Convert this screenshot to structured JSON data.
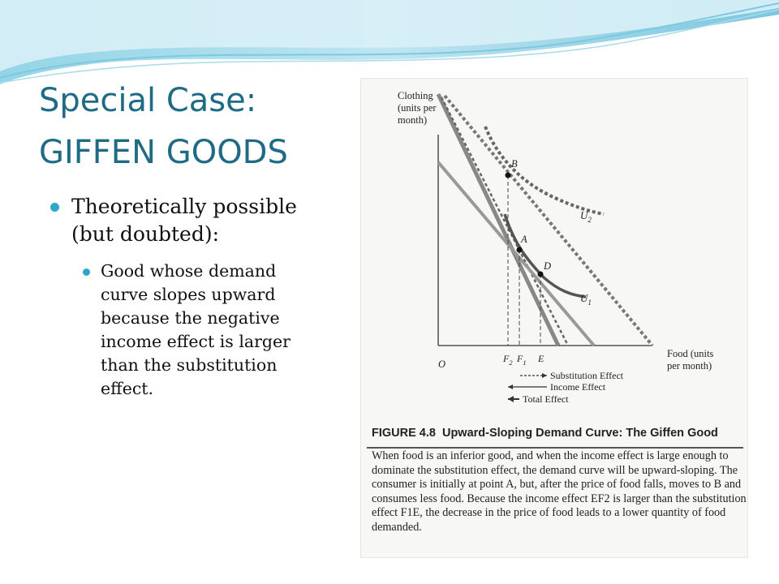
{
  "slide": {
    "title_line1": "Special Case:",
    "title_line2": "GIFFEN GOODS",
    "bullet1_lines": [
      "Theoretically possible",
      "(but doubted):"
    ],
    "bullet2_lines": [
      "Good whose demand",
      "curve slopes upward",
      "because the negative",
      "income effect is larger",
      "than the substitution",
      "effect."
    ]
  },
  "figure": {
    "y_axis_label": [
      "Clothing",
      "(units per",
      "month)"
    ],
    "x_axis_label": [
      "Food (units",
      "per month)"
    ],
    "origin_label": "O",
    "point_labels": {
      "b": "B",
      "a": "A",
      "d": "D"
    },
    "curve_labels": {
      "u2": "U",
      "u2_sub": "2",
      "u1": "U",
      "u1_sub": "1"
    },
    "x_tick_labels": {
      "f2": "F",
      "f2_sub": "2",
      "f1": "F",
      "f1_sub": "1",
      "e": "E"
    },
    "legend": [
      "Substitution Effect",
      "Income Effect",
      "Total Effect"
    ],
    "figure_number": "FIGURE 4.8",
    "figure_title": "Upward-Sloping Demand Curve: The Giffen Good",
    "caption_lines": [
      "When food is an inferior good, and when the income effect is large enough to",
      "dominate the substitution effect, the demand curve will be upward-sloping. The",
      "consumer is initially at point A, but, after the price of food falls, moves to B and",
      "consumes less food. Because the income effect EF2 is larger than the substitution",
      "effect F1E, the decrease in the price of food leads to a lower quantity of food",
      "demanded."
    ]
  },
  "colors": {
    "title": "#1f6b86",
    "bullet_dot": "#2da7c8",
    "wave": "#5fc0dc",
    "curves": "#555555"
  },
  "icons": {
    "bullet": "filled-circle-bullet"
  }
}
